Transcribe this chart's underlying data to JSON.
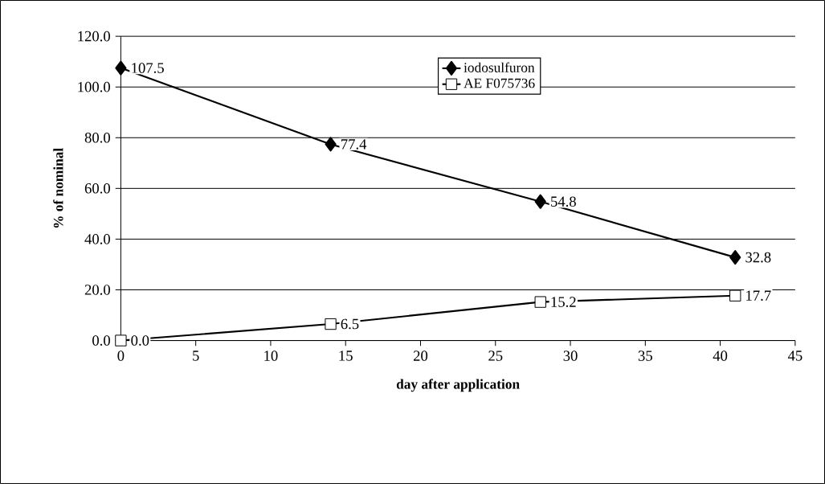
{
  "chart_data": {
    "type": "line",
    "xlabel": "day after application",
    "ylabel": "% of nominal",
    "series": [
      {
        "name": "iodosulfuron",
        "color": "#000000",
        "marker": "diamond",
        "x": [
          0,
          14,
          28,
          41
        ],
        "values": [
          107.5,
          77.4,
          54.8,
          32.8
        ],
        "value_labels": [
          "107.5",
          "77.4",
          "54.8",
          "32.8"
        ]
      },
      {
        "name": "AE F075736",
        "color": "#000000",
        "marker": "square",
        "x": [
          0,
          14,
          28,
          41
        ],
        "values": [
          0.0,
          6.5,
          15.2,
          17.7
        ],
        "value_labels": [
          "0.0",
          "6.5",
          "15.2",
          "17.7"
        ]
      }
    ],
    "xlim": [
      0,
      45
    ],
    "ylim": [
      0,
      120
    ],
    "xticks": [
      0,
      5,
      10,
      15,
      20,
      25,
      30,
      35,
      40,
      45
    ],
    "yticks": [
      {
        "value": 0,
        "label": "0.0"
      },
      {
        "value": 20,
        "label": "20.0"
      },
      {
        "value": 40,
        "label": "40.0"
      },
      {
        "value": 60,
        "label": "60.0"
      },
      {
        "value": 80,
        "label": "80.0"
      },
      {
        "value": 100,
        "label": "100.0"
      },
      {
        "value": 120,
        "label": "120.0"
      }
    ],
    "grid": "y",
    "legend": "top"
  }
}
